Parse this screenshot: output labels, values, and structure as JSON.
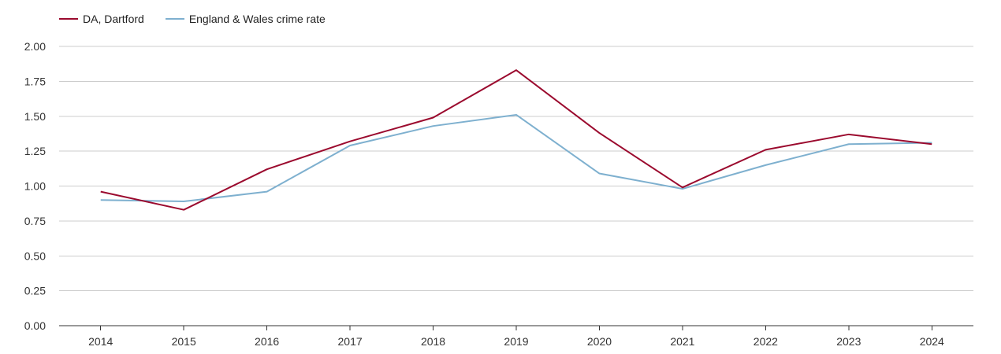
{
  "chart_data": {
    "type": "line",
    "categories": [
      "2014",
      "2015",
      "2016",
      "2017",
      "2018",
      "2019",
      "2020",
      "2021",
      "2022",
      "2023",
      "2024"
    ],
    "series": [
      {
        "name": "DA, Dartford",
        "color": "#9b0a2e",
        "values": [
          0.96,
          0.83,
          1.12,
          1.32,
          1.49,
          1.83,
          1.38,
          0.99,
          1.26,
          1.37,
          1.3
        ]
      },
      {
        "name": "England & Wales crime rate",
        "color": "#7eb0cf",
        "values": [
          0.9,
          0.89,
          0.96,
          1.29,
          1.43,
          1.51,
          1.09,
          0.98,
          1.15,
          1.3,
          1.31
        ]
      }
    ],
    "ylim": [
      0,
      2
    ],
    "yticks": [
      "0.00",
      "0.25",
      "0.50",
      "0.75",
      "1.00",
      "1.25",
      "1.50",
      "1.75",
      "2.00"
    ],
    "grid": true,
    "legend_position": "top-left"
  }
}
